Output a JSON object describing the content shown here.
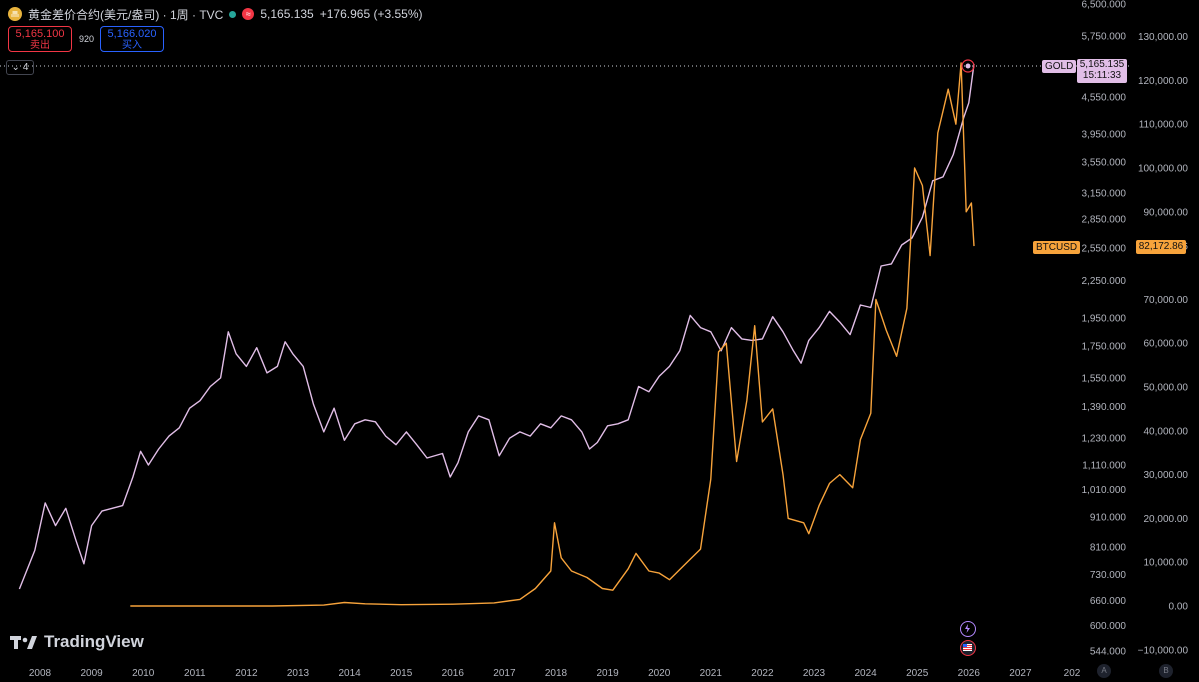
{
  "header": {
    "title": "黄金差价合约(美元/盎司) · 1周 · TVC",
    "price": "5,165.135",
    "change": "+176.965 (+3.55%)",
    "market_badge": "≈",
    "symbol_icon": "gold-coin-icon"
  },
  "quote": {
    "sell_price": "5,165.100",
    "sell_label": "卖出",
    "spread": "920",
    "buy_price": "5,166.020",
    "buy_label": "买入"
  },
  "indicator_toggle": {
    "count": "4"
  },
  "brand": {
    "name": "TradingView"
  },
  "price_tags": {
    "gold_label": "GOLD",
    "gold_price": "5,165.135",
    "gold_time": "15:11:33",
    "btc_label": "BTCUSD",
    "btc_price": "82,172.86"
  },
  "scale_buttons": {
    "auto": "A",
    "log": "B"
  },
  "colors": {
    "gold": "#e1bee7",
    "btc": "#f7a33b",
    "background": "#000000",
    "axis_text": "#b2b5be"
  },
  "chart_data": {
    "type": "line",
    "x_labels": [
      "2008",
      "2009",
      "2010",
      "2011",
      "2012",
      "2013",
      "2014",
      "2015",
      "2016",
      "2017",
      "2018",
      "2019",
      "2020",
      "2021",
      "2022",
      "2023",
      "2024",
      "2025",
      "2026",
      "2027",
      "202"
    ],
    "left_axis": [
      "6,500.000",
      "5,750.000",
      "5,165.135",
      "4,550.000",
      "3,950.000",
      "3,550.000",
      "3,150.000",
      "2,850.000",
      "2,550.000",
      "2,250.000",
      "1,950.000",
      "1,750.000",
      "1,550.000",
      "1,390.000",
      "1,230.000",
      "1,110.000",
      "1,010.000",
      "910.000",
      "810.000",
      "730.000",
      "660.000",
      "600.000",
      "544.000"
    ],
    "right_axis": [
      "130,000.00",
      "120,000.00",
      "110,000.00",
      "100,000.00",
      "90,000.00",
      "82,172.86",
      "70,000.00",
      "60,000.00",
      "50,000.00",
      "40,000.00",
      "30,000.00",
      "20,000.00",
      "10,000.00",
      "0.00",
      "−10,000.00"
    ],
    "series": [
      {
        "name": "GOLD",
        "color": "#e1bee7",
        "points": [
          [
            2007.6,
            690
          ],
          [
            2007.9,
            800
          ],
          [
            2008.1,
            960
          ],
          [
            2008.3,
            880
          ],
          [
            2008.5,
            940
          ],
          [
            2008.7,
            830
          ],
          [
            2008.85,
            760
          ],
          [
            2009.0,
            880
          ],
          [
            2009.2,
            930
          ],
          [
            2009.4,
            940
          ],
          [
            2009.6,
            950
          ],
          [
            2009.8,
            1060
          ],
          [
            2009.95,
            1170
          ],
          [
            2010.1,
            1110
          ],
          [
            2010.3,
            1180
          ],
          [
            2010.5,
            1240
          ],
          [
            2010.7,
            1280
          ],
          [
            2010.9,
            1380
          ],
          [
            2011.1,
            1420
          ],
          [
            2011.3,
            1500
          ],
          [
            2011.5,
            1550
          ],
          [
            2011.65,
            1850
          ],
          [
            2011.8,
            1700
          ],
          [
            2012.0,
            1620
          ],
          [
            2012.2,
            1740
          ],
          [
            2012.4,
            1580
          ],
          [
            2012.6,
            1620
          ],
          [
            2012.75,
            1780
          ],
          [
            2012.9,
            1700
          ],
          [
            2013.1,
            1620
          ],
          [
            2013.3,
            1400
          ],
          [
            2013.5,
            1260
          ],
          [
            2013.7,
            1380
          ],
          [
            2013.9,
            1220
          ],
          [
            2014.1,
            1300
          ],
          [
            2014.3,
            1320
          ],
          [
            2014.5,
            1310
          ],
          [
            2014.7,
            1240
          ],
          [
            2014.9,
            1200
          ],
          [
            2015.1,
            1260
          ],
          [
            2015.3,
            1200
          ],
          [
            2015.5,
            1140
          ],
          [
            2015.8,
            1160
          ],
          [
            2015.95,
            1060
          ],
          [
            2016.1,
            1120
          ],
          [
            2016.3,
            1260
          ],
          [
            2016.5,
            1340
          ],
          [
            2016.7,
            1320
          ],
          [
            2016.9,
            1150
          ],
          [
            2017.1,
            1230
          ],
          [
            2017.3,
            1260
          ],
          [
            2017.5,
            1240
          ],
          [
            2017.7,
            1300
          ],
          [
            2017.9,
            1280
          ],
          [
            2018.1,
            1340
          ],
          [
            2018.3,
            1320
          ],
          [
            2018.5,
            1260
          ],
          [
            2018.65,
            1180
          ],
          [
            2018.8,
            1210
          ],
          [
            2019.0,
            1290
          ],
          [
            2019.2,
            1300
          ],
          [
            2019.4,
            1320
          ],
          [
            2019.6,
            1500
          ],
          [
            2019.8,
            1470
          ],
          [
            2020.0,
            1560
          ],
          [
            2020.2,
            1620
          ],
          [
            2020.4,
            1720
          ],
          [
            2020.6,
            1970
          ],
          [
            2020.8,
            1880
          ],
          [
            2021.0,
            1850
          ],
          [
            2021.2,
            1720
          ],
          [
            2021.4,
            1880
          ],
          [
            2021.6,
            1800
          ],
          [
            2021.8,
            1790
          ],
          [
            2022.0,
            1800
          ],
          [
            2022.2,
            1960
          ],
          [
            2022.4,
            1850
          ],
          [
            2022.6,
            1720
          ],
          [
            2022.75,
            1640
          ],
          [
            2022.9,
            1790
          ],
          [
            2023.1,
            1880
          ],
          [
            2023.3,
            2000
          ],
          [
            2023.5,
            1920
          ],
          [
            2023.7,
            1830
          ],
          [
            2023.9,
            2050
          ],
          [
            2024.1,
            2030
          ],
          [
            2024.3,
            2380
          ],
          [
            2024.5,
            2400
          ],
          [
            2024.7,
            2580
          ],
          [
            2024.9,
            2650
          ],
          [
            2025.1,
            2870
          ],
          [
            2025.3,
            3300
          ],
          [
            2025.5,
            3350
          ],
          [
            2025.7,
            3650
          ],
          [
            2025.9,
            4200
          ],
          [
            2026.0,
            4450
          ],
          [
            2026.1,
            5165
          ]
        ]
      },
      {
        "name": "BTCUSD",
        "color": "#f7a33b",
        "points": [
          [
            2009.75,
            0
          ],
          [
            2010.5,
            0
          ],
          [
            2011.5,
            0
          ],
          [
            2012.5,
            0
          ],
          [
            2013.5,
            200
          ],
          [
            2013.9,
            800
          ],
          [
            2014.3,
            500
          ],
          [
            2015.0,
            300
          ],
          [
            2016.0,
            400
          ],
          [
            2016.8,
            700
          ],
          [
            2017.3,
            1500
          ],
          [
            2017.6,
            4000
          ],
          [
            2017.9,
            8000
          ],
          [
            2017.97,
            19000
          ],
          [
            2018.1,
            11000
          ],
          [
            2018.3,
            8000
          ],
          [
            2018.6,
            6500
          ],
          [
            2018.9,
            4000
          ],
          [
            2019.1,
            3600
          ],
          [
            2019.4,
            8500
          ],
          [
            2019.55,
            12000
          ],
          [
            2019.8,
            8000
          ],
          [
            2020.0,
            7500
          ],
          [
            2020.2,
            6000
          ],
          [
            2020.5,
            9500
          ],
          [
            2020.8,
            13000
          ],
          [
            2021.0,
            29000
          ],
          [
            2021.15,
            58000
          ],
          [
            2021.3,
            60000
          ],
          [
            2021.5,
            33000
          ],
          [
            2021.7,
            47000
          ],
          [
            2021.85,
            64000
          ],
          [
            2022.0,
            42000
          ],
          [
            2022.2,
            45000
          ],
          [
            2022.4,
            30000
          ],
          [
            2022.5,
            20000
          ],
          [
            2022.8,
            19000
          ],
          [
            2022.9,
            16500
          ],
          [
            2023.1,
            23000
          ],
          [
            2023.3,
            28000
          ],
          [
            2023.5,
            30000
          ],
          [
            2023.75,
            27000
          ],
          [
            2023.9,
            38000
          ],
          [
            2024.1,
            44000
          ],
          [
            2024.2,
            70000
          ],
          [
            2024.4,
            63000
          ],
          [
            2024.6,
            57000
          ],
          [
            2024.8,
            68000
          ],
          [
            2024.95,
            100000
          ],
          [
            2025.1,
            96000
          ],
          [
            2025.25,
            80000
          ],
          [
            2025.4,
            108000
          ],
          [
            2025.6,
            118000
          ],
          [
            2025.75,
            110000
          ],
          [
            2025.85,
            124000
          ],
          [
            2025.95,
            90000
          ],
          [
            2026.05,
            92000
          ],
          [
            2026.1,
            82172
          ]
        ]
      }
    ]
  }
}
